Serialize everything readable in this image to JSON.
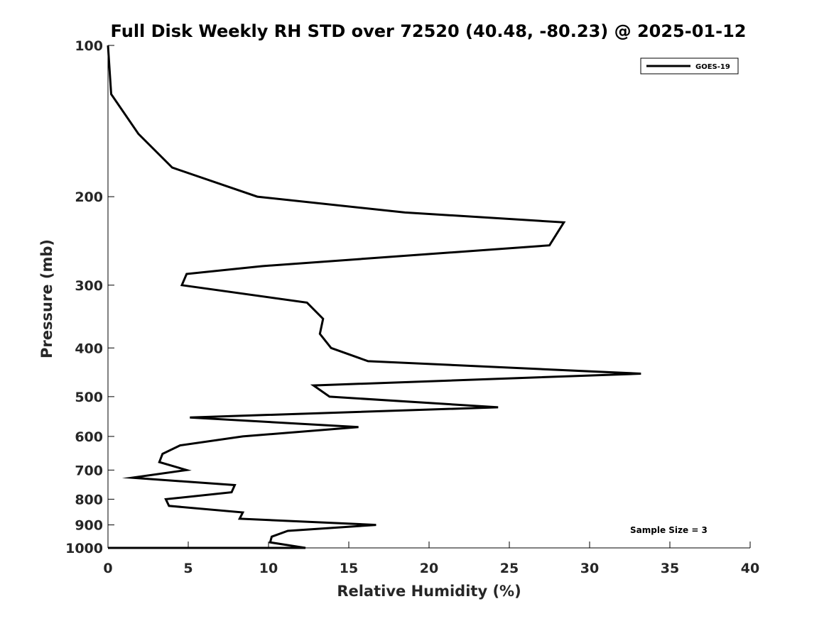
{
  "chart_data": {
    "type": "line",
    "title": "Full Disk Weekly RH STD over 72520 (40.48, -80.23) @ 2025-01-12",
    "xlabel": "Relative Humidity (%)",
    "ylabel": "Pressure (mb)",
    "xlim": [
      0,
      40
    ],
    "ylim": [
      1000,
      100
    ],
    "y_scale": "log",
    "x_ticks": [
      "0",
      "5",
      "10",
      "15",
      "20",
      "25",
      "30",
      "35",
      "40"
    ],
    "y_ticks": [
      "100",
      "200",
      "300",
      "400",
      "500",
      "600",
      "700",
      "800",
      "900",
      "1000"
    ],
    "grid": false,
    "legend_position": "top-right",
    "annotation": "Sample Size = 3",
    "series": [
      {
        "name": "GOES-19",
        "color": "#000000",
        "points": [
          [
            0.0,
            100
          ],
          [
            0.2,
            125
          ],
          [
            1.9,
            150
          ],
          [
            4.0,
            175
          ],
          [
            9.3,
            200
          ],
          [
            18.5,
            215
          ],
          [
            28.4,
            225
          ],
          [
            27.5,
            250
          ],
          [
            9.6,
            275
          ],
          [
            4.9,
            285
          ],
          [
            4.6,
            300
          ],
          [
            12.4,
            325
          ],
          [
            13.4,
            350
          ],
          [
            13.2,
            375
          ],
          [
            13.9,
            400
          ],
          [
            16.2,
            425
          ],
          [
            33.2,
            450
          ],
          [
            12.8,
            475
          ],
          [
            13.8,
            500
          ],
          [
            24.3,
            525
          ],
          [
            5.1,
            550
          ],
          [
            15.6,
            575
          ],
          [
            8.4,
            600
          ],
          [
            4.5,
            625
          ],
          [
            3.4,
            650
          ],
          [
            3.2,
            675
          ],
          [
            4.9,
            700
          ],
          [
            1.5,
            725
          ],
          [
            7.9,
            750
          ],
          [
            7.7,
            775
          ],
          [
            3.6,
            800
          ],
          [
            3.8,
            825
          ],
          [
            8.4,
            850
          ],
          [
            8.2,
            875
          ],
          [
            16.7,
            900
          ],
          [
            11.2,
            925
          ],
          [
            10.2,
            950
          ],
          [
            10.1,
            975
          ],
          [
            12.3,
            1000
          ],
          [
            0.0,
            1000
          ]
        ]
      }
    ]
  }
}
